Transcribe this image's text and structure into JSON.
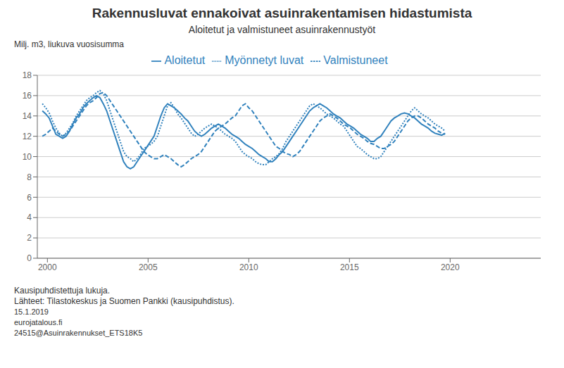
{
  "chart_data": {
    "type": "line",
    "title": "Rakennusluvat ennakoivat asuinrakentamisen hidastumista",
    "subtitle": "Aloitetut ja valmistuneet asuinrakennustyöt",
    "ylabel": "Milj. m3, liukuva vuosisumma",
    "annotations": [
      "Kausipuhdistettuja lukuja.",
      "Lähteet: Tilastokeskus ja Suomen Pankki (kausipuhdistus).",
      "15.1.2019",
      "eurojatalous.fi",
      "24515@Asuinrakennukset_ETS18K5"
    ],
    "grid": true,
    "legend": "top",
    "xlim": [
      1999.5,
      2024.5
    ],
    "xticks": [
      2000,
      2005,
      2010,
      2015,
      2020
    ],
    "ylim": [
      0,
      18
    ],
    "yticks": [
      0,
      2,
      4,
      6,
      8,
      10,
      12,
      14,
      16,
      18
    ],
    "x": [
      1999.75,
      1999.9181,
      2000.0861,
      2000.2542,
      2000.4223,
      2000.5903,
      2000.7584,
      2000.9265,
      2001.0945,
      2001.2626,
      2001.4307,
      2001.5987,
      2001.7668,
      2001.9349,
      2002.1029,
      2002.271,
      2002.4391,
      2002.6071,
      2002.7752,
      2002.9433,
      2003.1113,
      2003.2794,
      2003.4475,
      2003.6155,
      2003.7836,
      2003.9517,
      2004.1197,
      2004.2878,
      2004.4559,
      2004.6239,
      2004.792,
      2004.9601,
      2005.1282,
      2005.2962,
      2005.4643,
      2005.6324,
      2005.8004,
      2005.9685,
      2006.1366,
      2006.3046,
      2006.4727,
      2006.6408,
      2006.8088,
      2006.9769,
      2007.145,
      2007.313,
      2007.4811,
      2007.6492,
      2007.8172,
      2007.9853,
      2008.1534,
      2008.3214,
      2008.4895,
      2008.6576,
      2008.8256,
      2008.9937,
      2009.1618,
      2009.3298,
      2009.4979,
      2009.666,
      2009.834,
      2010.0021,
      2010.1702,
      2010.3382,
      2010.5063,
      2010.6744,
      2010.8424,
      2011.0105,
      2011.1786,
      2011.3466,
      2011.5147,
      2011.6828,
      2011.8508,
      2012.0189,
      2012.187,
      2012.355,
      2012.5231,
      2012.6912,
      2012.8592,
      2013.0273,
      2013.1954,
      2013.3634,
      2013.5315,
      2013.6996,
      2013.8676,
      2014.0357,
      2014.2038,
      2014.3718,
      2014.5399,
      2014.708,
      2014.8761,
      2015.0441,
      2015.2122,
      2015.3803,
      2015.5483,
      2015.7164,
      2015.8845,
      2016.0525,
      2016.2206,
      2016.3887,
      2016.5567,
      2016.7248,
      2016.8929,
      2017.0609,
      2017.229,
      2017.3971,
      2017.5651,
      2017.7332,
      2017.9013,
      2018.0693,
      2018.2374,
      2018.4055,
      2018.5735,
      2018.7416,
      2018.9097,
      2019.0777,
      2019.2458,
      2019.4139,
      2019.5819,
      2019.75
    ],
    "series": [
      {
        "name": "Aloitetut",
        "line_style": "solid",
        "values": [
          14.5,
          14.2,
          13.8,
          13.0,
          12.2,
          12.0,
          11.8,
          12.0,
          12.5,
          13.2,
          13.8,
          14.2,
          14.8,
          15.2,
          15.5,
          15.8,
          16.0,
          15.8,
          15.2,
          14.5,
          13.5,
          12.5,
          11.5,
          10.5,
          9.5,
          9.0,
          8.8,
          9.0,
          9.5,
          10.0,
          10.5,
          11.0,
          11.5,
          12.0,
          13.0,
          14.0,
          14.8,
          15.2,
          15.0,
          14.8,
          14.5,
          14.2,
          13.8,
          13.5,
          13.0,
          12.5,
          12.2,
          12.0,
          12.2,
          12.5,
          12.8,
          13.0,
          13.2,
          13.0,
          12.8,
          12.5,
          12.2,
          12.0,
          11.8,
          11.5,
          11.2,
          11.0,
          10.8,
          10.5,
          10.2,
          10.0,
          9.8,
          9.5,
          9.5,
          9.8,
          10.2,
          10.5,
          11.0,
          11.5,
          12.0,
          12.5,
          13.0,
          13.5,
          14.0,
          14.5,
          14.8,
          15.0,
          15.2,
          15.0,
          14.8,
          14.5,
          14.2,
          14.0,
          13.8,
          13.5,
          13.2,
          13.0,
          12.8,
          12.5,
          12.2,
          12.0,
          11.8,
          11.5,
          11.5,
          11.8,
          12.0,
          12.5,
          13.0,
          13.5,
          13.8,
          14.0,
          14.2,
          14.3,
          14.2,
          14.0,
          13.8,
          13.5,
          13.2,
          13.0,
          12.8,
          12.5,
          12.3,
          12.2,
          12.1,
          12.3
        ]
      },
      {
        "name": "Valmistuneet",
        "line_style": "dashed",
        "values": [
          12.0,
          12.2,
          12.5,
          12.8,
          12.5,
          12.2,
          12.0,
          12.2,
          12.5,
          13.0,
          13.5,
          14.0,
          14.5,
          15.0,
          15.3,
          15.5,
          15.8,
          16.2,
          16.3,
          16.0,
          15.5,
          15.0,
          14.5,
          14.0,
          13.5,
          13.0,
          12.5,
          12.0,
          11.5,
          11.0,
          10.5,
          10.2,
          10.0,
          9.8,
          9.8,
          10.0,
          10.2,
          10.0,
          9.8,
          9.5,
          9.2,
          9.0,
          9.2,
          9.5,
          9.8,
          10.0,
          10.2,
          10.5,
          11.0,
          11.5,
          12.0,
          12.5,
          12.8,
          13.0,
          13.2,
          13.5,
          13.8,
          14.0,
          14.5,
          15.0,
          15.2,
          14.8,
          14.5,
          14.0,
          13.5,
          13.0,
          12.5,
          12.0,
          11.5,
          11.0,
          10.8,
          10.5,
          10.3,
          10.2,
          10.0,
          10.2,
          10.5,
          11.0,
          11.5,
          12.0,
          12.5,
          13.0,
          13.5,
          13.8,
          14.0,
          14.2,
          14.0,
          13.8,
          13.5,
          13.2,
          13.0,
          12.8,
          12.5,
          12.2,
          12.0,
          11.8,
          11.5,
          11.3,
          11.2,
          11.0,
          10.8,
          10.8,
          11.0,
          11.2,
          11.5,
          12.0,
          12.5,
          13.0,
          13.5,
          13.8,
          14.0,
          14.0,
          13.8,
          13.5,
          13.2,
          13.0,
          12.8,
          12.5,
          12.3,
          12.2
        ]
      },
      {
        "name": "Myönnetyt luvat",
        "line_style": "dotted",
        "values": [
          15.2,
          14.8,
          14.3,
          13.5,
          12.8,
          12.3,
          12.0,
          12.3,
          12.8,
          13.3,
          14.0,
          14.5,
          15.0,
          15.5,
          15.8,
          16.0,
          16.3,
          16.5,
          16.2,
          15.5,
          14.5,
          13.5,
          12.5,
          11.5,
          10.5,
          10.0,
          9.8,
          9.5,
          9.8,
          10.2,
          10.8,
          11.0,
          11.2,
          11.5,
          12.0,
          13.0,
          14.0,
          15.0,
          15.3,
          14.8,
          14.2,
          13.8,
          13.3,
          12.8,
          12.3,
          12.0,
          12.2,
          12.5,
          12.8,
          13.0,
          13.2,
          13.0,
          12.8,
          12.5,
          12.2,
          12.0,
          11.8,
          11.5,
          11.0,
          10.5,
          10.2,
          10.0,
          9.8,
          9.5,
          9.3,
          9.2,
          9.2,
          9.5,
          9.8,
          10.0,
          10.3,
          10.8,
          11.5,
          12.0,
          12.5,
          13.0,
          13.5,
          14.0,
          14.5,
          15.0,
          15.2,
          15.0,
          14.8,
          14.5,
          14.2,
          14.0,
          13.8,
          13.5,
          13.2,
          13.0,
          12.5,
          12.0,
          11.5,
          11.0,
          10.8,
          10.5,
          10.2,
          10.0,
          9.8,
          9.8,
          10.0,
          10.5,
          11.0,
          11.5,
          12.0,
          12.5,
          13.0,
          13.5,
          14.0,
          14.5,
          14.8,
          14.5,
          14.2,
          14.0,
          13.8,
          13.5,
          13.2,
          13.0,
          12.8,
          12.5
        ]
      }
    ]
  }
}
